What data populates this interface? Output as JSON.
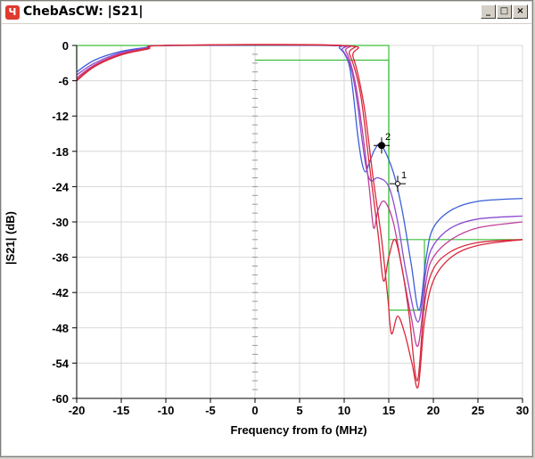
{
  "window": {
    "title": "ChebAsCW: |S21|",
    "icon": "app-logo-icon",
    "controls": {
      "minimize": "_",
      "maximize": "□",
      "close": "×"
    }
  },
  "colors": {
    "grid": "#d8d8d8",
    "mask": "#3cbf3c",
    "trace_blue": "#3a5ed8",
    "trace_purple": "#8a4bd0",
    "trace_magenta": "#c0409c",
    "trace_red": "#d8283c"
  },
  "chart_data": {
    "type": "line",
    "xlabel": "Frequency from fo (MHz)",
    "ylabel": "|S21| (dB)",
    "xlim": [
      -20,
      30
    ],
    "ylim": [
      -60,
      0
    ],
    "xticks": [
      -20,
      -15,
      -10,
      -5,
      0,
      5,
      10,
      15,
      20,
      25,
      30
    ],
    "yticks": [
      0,
      -6,
      -12,
      -18,
      -24,
      -30,
      -36,
      -42,
      -48,
      -54,
      -60
    ],
    "grid": true,
    "legend": "none",
    "markers": [
      {
        "label": "1",
        "x": 16.0,
        "y": -23.5,
        "filled": false
      },
      {
        "label": "2",
        "x": 14.2,
        "y": -17.0,
        "filled": true
      }
    ],
    "mask": {
      "upper": [
        [
          -20,
          -4
        ],
        [
          -20,
          0
        ],
        [
          15,
          0
        ],
        [
          15,
          -33
        ],
        [
          20,
          -33
        ],
        [
          30,
          -33
        ]
      ],
      "lower": [
        [
          0,
          -2.5
        ],
        [
          15,
          -2.5
        ],
        [
          15,
          -45
        ],
        [
          19,
          -45
        ],
        [
          19,
          -33
        ]
      ]
    },
    "series": [
      {
        "color": "#3a5ed8",
        "points": [
          [
            -20,
            -4.5
          ],
          [
            -18,
            -2.5
          ],
          [
            -15,
            -1.0
          ],
          [
            -12,
            -0.3
          ],
          [
            -10,
            0
          ],
          [
            8,
            0
          ],
          [
            9.5,
            -0.5
          ],
          [
            10.5,
            -3
          ],
          [
            11,
            -8
          ],
          [
            11.5,
            -15
          ],
          [
            12,
            -20
          ],
          [
            12.4,
            -21.5
          ],
          [
            12.8,
            -20
          ],
          [
            13.5,
            -17.5
          ],
          [
            14.2,
            -17.0
          ],
          [
            15.5,
            -21.5
          ],
          [
            16.5,
            -28
          ],
          [
            17.5,
            -37
          ],
          [
            18.4,
            -45
          ],
          [
            19.2,
            -36
          ],
          [
            20,
            -31
          ],
          [
            22,
            -28
          ],
          [
            25,
            -26.5
          ],
          [
            30,
            -26
          ]
        ]
      },
      {
        "color": "#8a4bd0",
        "points": [
          [
            -20,
            -5.0
          ],
          [
            -18,
            -3.0
          ],
          [
            -15,
            -1.2
          ],
          [
            -12,
            -0.4
          ],
          [
            -10,
            0
          ],
          [
            8.5,
            0
          ],
          [
            9.8,
            -0.8
          ],
          [
            10.8,
            -4
          ],
          [
            11.5,
            -10
          ],
          [
            12,
            -16
          ],
          [
            12.5,
            -21
          ],
          [
            13,
            -23
          ],
          [
            13.8,
            -22.5
          ],
          [
            15,
            -24
          ],
          [
            16,
            -30
          ],
          [
            17,
            -39
          ],
          [
            18.3,
            -47
          ],
          [
            19.2,
            -38
          ],
          [
            20,
            -34
          ],
          [
            22,
            -31
          ],
          [
            25,
            -29.5
          ],
          [
            30,
            -29
          ]
        ]
      },
      {
        "color": "#c0409c",
        "points": [
          [
            -20,
            -5.5
          ],
          [
            -18,
            -3.3
          ],
          [
            -15,
            -1.4
          ],
          [
            -12,
            -0.5
          ],
          [
            -10,
            0
          ],
          [
            9,
            0
          ],
          [
            10.2,
            -1
          ],
          [
            11.2,
            -6
          ],
          [
            12,
            -14
          ],
          [
            12.8,
            -24
          ],
          [
            13.3,
            -31
          ],
          [
            13.8,
            -28
          ],
          [
            14.5,
            -26.5
          ],
          [
            15.5,
            -30
          ],
          [
            16.5,
            -38
          ],
          [
            17.5,
            -46
          ],
          [
            18.3,
            -51
          ],
          [
            19.2,
            -40
          ],
          [
            20,
            -36
          ],
          [
            22,
            -33
          ],
          [
            25,
            -31
          ],
          [
            30,
            -30
          ]
        ]
      },
      {
        "color": "#d8283c",
        "points": [
          [
            -20,
            -6.0
          ],
          [
            -18,
            -3.6
          ],
          [
            -15,
            -1.6
          ],
          [
            -12,
            -0.6
          ],
          [
            -10,
            0
          ],
          [
            9.5,
            0
          ],
          [
            10.6,
            -1.5
          ],
          [
            11.8,
            -8
          ],
          [
            12.8,
            -20
          ],
          [
            13.8,
            -32
          ],
          [
            14.4,
            -40
          ],
          [
            15,
            -36
          ],
          [
            15.7,
            -33
          ],
          [
            16.5,
            -38
          ],
          [
            17.3,
            -46
          ],
          [
            18.2,
            -57
          ],
          [
            19,
            -44
          ],
          [
            20,
            -38
          ],
          [
            22,
            -35
          ],
          [
            25,
            -33.5
          ],
          [
            30,
            -33
          ]
        ]
      },
      {
        "color": "#d8283c",
        "points": [
          [
            -20,
            -5.8
          ],
          [
            -18,
            -3.5
          ],
          [
            -15,
            -1.5
          ],
          [
            -12,
            -0.5
          ],
          [
            -10,
            0
          ],
          [
            9.8,
            0
          ],
          [
            11,
            -2
          ],
          [
            12.2,
            -10
          ],
          [
            13.2,
            -22
          ],
          [
            14.2,
            -33
          ],
          [
            14.9,
            -43
          ],
          [
            15.3,
            -49
          ],
          [
            16,
            -46
          ],
          [
            16.8,
            -49
          ],
          [
            17.6,
            -54
          ],
          [
            18.3,
            -58
          ],
          [
            19,
            -47
          ],
          [
            20,
            -40
          ],
          [
            22,
            -36
          ],
          [
            25,
            -34
          ],
          [
            30,
            -33
          ]
        ]
      }
    ]
  }
}
